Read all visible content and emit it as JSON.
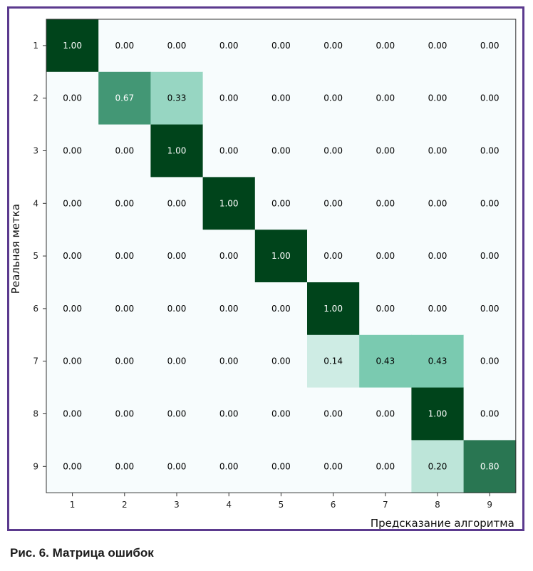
{
  "chart_data": {
    "type": "heatmap",
    "title": "",
    "xlabel": "Предсказание алгоритма",
    "ylabel": "Реальная метка",
    "x_categories": [
      "1",
      "2",
      "3",
      "4",
      "5",
      "6",
      "7",
      "8",
      "9"
    ],
    "y_categories": [
      "1",
      "2",
      "3",
      "4",
      "5",
      "6",
      "7",
      "8",
      "9"
    ],
    "colormap": "greens",
    "colors": {
      "low": "#f7fcfd",
      "mid": "#66c2a4",
      "high": "#00441b",
      "text_dark": "#000000",
      "text_light": "#ffffff"
    },
    "matrix": [
      [
        1.0,
        0.0,
        0.0,
        0.0,
        0.0,
        0.0,
        0.0,
        0.0,
        0.0
      ],
      [
        0.0,
        0.67,
        0.33,
        0.0,
        0.0,
        0.0,
        0.0,
        0.0,
        0.0
      ],
      [
        0.0,
        0.0,
        1.0,
        0.0,
        0.0,
        0.0,
        0.0,
        0.0,
        0.0
      ],
      [
        0.0,
        0.0,
        0.0,
        1.0,
        0.0,
        0.0,
        0.0,
        0.0,
        0.0
      ],
      [
        0.0,
        0.0,
        0.0,
        0.0,
        1.0,
        0.0,
        0.0,
        0.0,
        0.0
      ],
      [
        0.0,
        0.0,
        0.0,
        0.0,
        0.0,
        1.0,
        0.0,
        0.0,
        0.0
      ],
      [
        0.0,
        0.0,
        0.0,
        0.0,
        0.0,
        0.14,
        0.43,
        0.43,
        0.0
      ],
      [
        0.0,
        0.0,
        0.0,
        0.0,
        0.0,
        0.0,
        0.0,
        1.0,
        0.0
      ],
      [
        0.0,
        0.0,
        0.0,
        0.0,
        0.0,
        0.0,
        0.0,
        0.2,
        0.8
      ]
    ],
    "value_range": [
      0,
      1
    ]
  },
  "caption": "Рис. 6. Матрица ошибок"
}
